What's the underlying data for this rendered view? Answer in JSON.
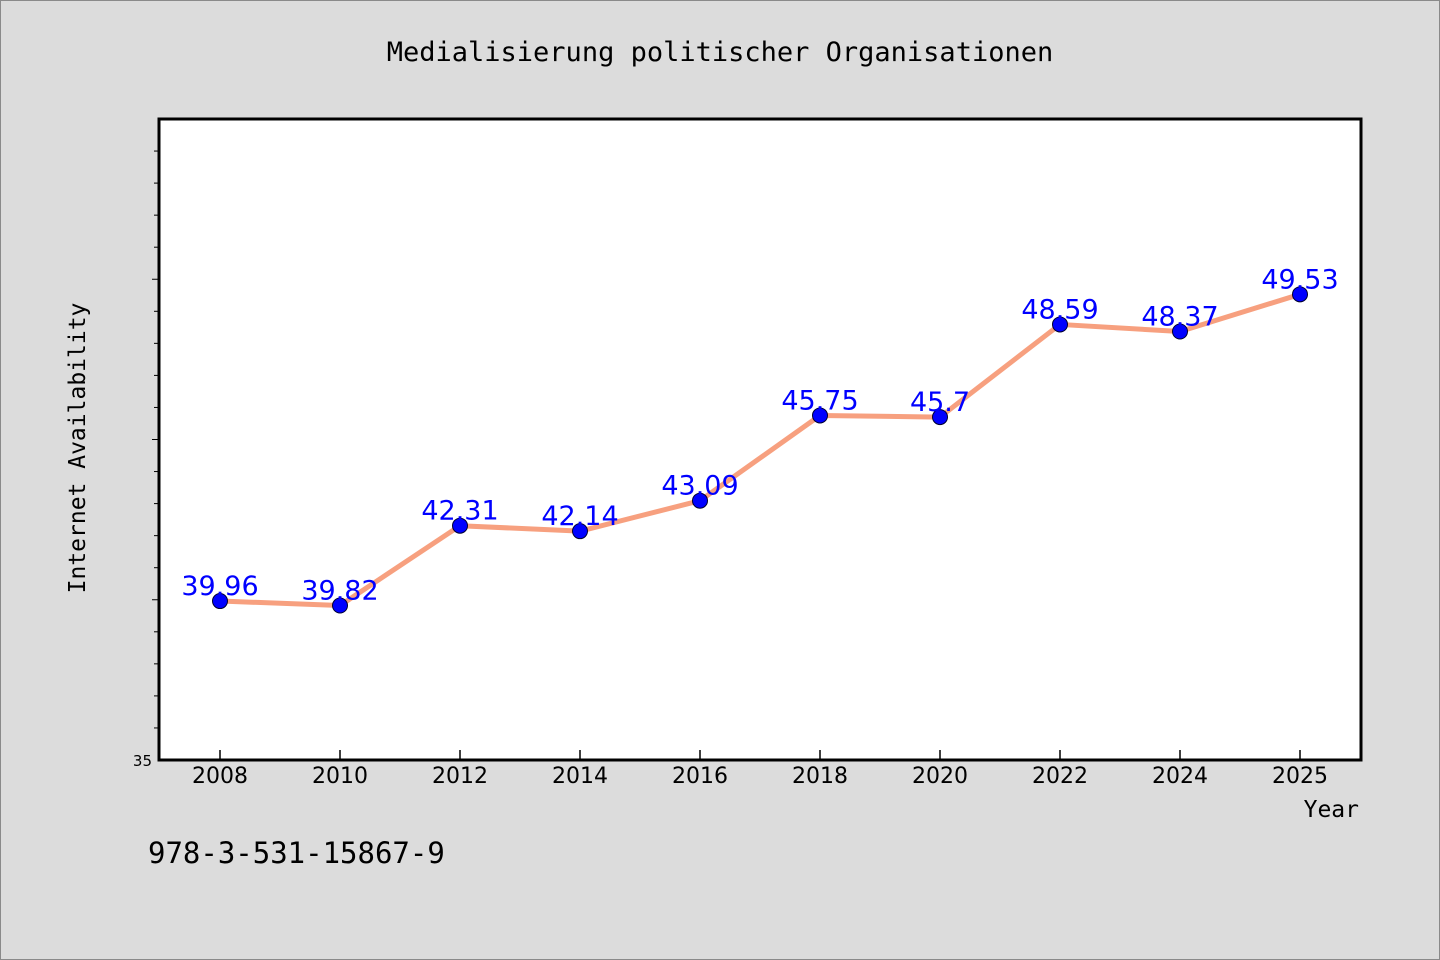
{
  "chart_data": {
    "type": "line",
    "title": "Medialisierung politischer Organisationen",
    "xlabel": "Year",
    "ylabel": "Internet Availability",
    "categories": [
      "2008",
      "2010",
      "2012",
      "2014",
      "2016",
      "2018",
      "2020",
      "2022",
      "2024",
      "2025"
    ],
    "series": [
      {
        "values": [
          39.96,
          39.82,
          42.31,
          42.14,
          43.09,
          45.75,
          45.7,
          48.59,
          48.37,
          49.53
        ],
        "data_labels": [
          "39.96",
          "39.82",
          "42.31",
          "42.14",
          "43.09",
          "45.75",
          "45.7",
          "48.59",
          "48.37",
          "49.53"
        ],
        "line_color": "#f7a07f",
        "marker_color": "#0000ff"
      }
    ],
    "ylim": [
      35,
      55
    ],
    "y_tick_labels": [
      "35"
    ],
    "grid": false,
    "legend": "none"
  },
  "footer": {
    "isbn": "978-3-531-15867-9"
  }
}
